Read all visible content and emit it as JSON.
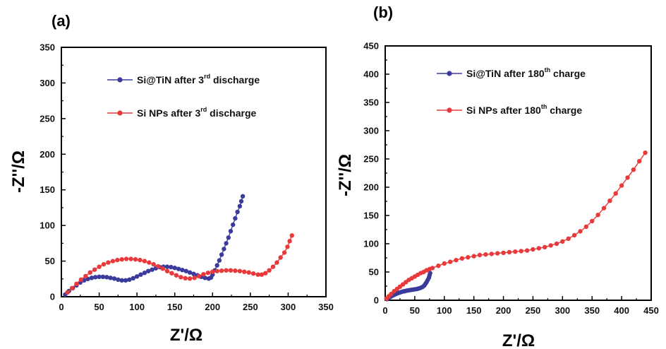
{
  "chart_data": [
    {
      "type": "scatter",
      "panel_label": "(a)",
      "xlabel": "Z'/Ω",
      "ylabel": "-Z''/Ω",
      "xlim": [
        0,
        350
      ],
      "ylim": [
        0,
        350
      ],
      "xticks": [
        "0",
        "50",
        "100",
        "150",
        "200",
        "250",
        "300",
        "350"
      ],
      "yticks": [
        "0",
        "50",
        "100",
        "150",
        "200",
        "250",
        "300",
        "350"
      ],
      "legend_position": "upper-center",
      "series": [
        {
          "name": "Si@TiN after 3rd discharge",
          "legend_main": "Si@TiN after 3",
          "legend_sup": "rd",
          "legend_tail": " discharge",
          "color": "#3b3b9c",
          "points": [
            [
              5,
              3
            ],
            [
              10,
              8
            ],
            [
              15,
              12
            ],
            [
              20,
              16
            ],
            [
              25,
              20
            ],
            [
              30,
              23
            ],
            [
              35,
              25
            ],
            [
              40,
              26.5
            ],
            [
              45,
              27.5
            ],
            [
              50,
              28
            ],
            [
              55,
              28
            ],
            [
              60,
              27.5
            ],
            [
              65,
              26.5
            ],
            [
              70,
              25.5
            ],
            [
              75,
              24
            ],
            [
              80,
              23
            ],
            [
              85,
              23
            ],
            [
              90,
              24
            ],
            [
              95,
              26
            ],
            [
              100,
              28.5
            ],
            [
              105,
              31
            ],
            [
              110,
              33.5
            ],
            [
              115,
              36
            ],
            [
              120,
              38
            ],
            [
              125,
              40
            ],
            [
              130,
              41.5
            ],
            [
              135,
              42
            ],
            [
              140,
              42
            ],
            [
              145,
              41.5
            ],
            [
              150,
              40.5
            ],
            [
              155,
              39
            ],
            [
              160,
              37.5
            ],
            [
              165,
              36
            ],
            [
              170,
              34
            ],
            [
              175,
              32
            ],
            [
              180,
              30
            ],
            [
              185,
              28
            ],
            [
              190,
              26.5
            ],
            [
              195,
              25.5
            ],
            [
              198,
              27
            ],
            [
              200,
              31
            ],
            [
              203,
              37
            ],
            [
              206,
              44
            ],
            [
              209,
              51
            ],
            [
              212,
              59
            ],
            [
              215,
              67
            ],
            [
              218,
              75
            ],
            [
              221,
              83
            ],
            [
              224,
              92
            ],
            [
              227,
              101
            ],
            [
              230,
              110
            ],
            [
              233,
              119
            ],
            [
              236,
              127
            ],
            [
              238,
              134
            ],
            [
              240,
              141
            ]
          ]
        },
        {
          "name": "Si NPs after 3rd discharge",
          "legend_main": "Si NPs after 3",
          "legend_sup": "rd",
          "legend_tail": " discharge",
          "color": "#e8393b",
          "points": [
            [
              8,
              6
            ],
            [
              14,
              12
            ],
            [
              20,
              18
            ],
            [
              26,
              24
            ],
            [
              32,
              29
            ],
            [
              38,
              34
            ],
            [
              44,
              38
            ],
            [
              50,
              42
            ],
            [
              56,
              45.5
            ],
            [
              62,
              48
            ],
            [
              68,
              50
            ],
            [
              74,
              51.5
            ],
            [
              80,
              52.5
            ],
            [
              86,
              53
            ],
            [
              92,
              53
            ],
            [
              98,
              52.5
            ],
            [
              104,
              51.5
            ],
            [
              110,
              50
            ],
            [
              116,
              48
            ],
            [
              122,
              45.5
            ],
            [
              128,
              42.5
            ],
            [
              134,
              39.5
            ],
            [
              140,
              36
            ],
            [
              146,
              33
            ],
            [
              152,
              30
            ],
            [
              158,
              27.5
            ],
            [
              164,
              26
            ],
            [
              170,
              25.5
            ],
            [
              176,
              26.5
            ],
            [
              182,
              29
            ],
            [
              188,
              31.5
            ],
            [
              194,
              33.5
            ],
            [
              200,
              35
            ],
            [
              206,
              36
            ],
            [
              212,
              36.5
            ],
            [
              218,
              37
            ],
            [
              224,
              37
            ],
            [
              230,
              36.5
            ],
            [
              236,
              36
            ],
            [
              242,
              35
            ],
            [
              248,
              34
            ],
            [
              254,
              32.5
            ],
            [
              260,
              31
            ],
            [
              265,
              31
            ],
            [
              270,
              33
            ],
            [
              275,
              37
            ],
            [
              280,
              42
            ],
            [
              285,
              48
            ],
            [
              290,
              55
            ],
            [
              295,
              62
            ],
            [
              299,
              70
            ],
            [
              302,
              78
            ],
            [
              305,
              86
            ]
          ]
        }
      ]
    },
    {
      "type": "scatter",
      "panel_label": "(b)",
      "xlabel": "Z'/Ω",
      "ylabel": "-Z''/Ω",
      "xlim": [
        0,
        450
      ],
      "ylim": [
        0,
        450
      ],
      "xticks": [
        "0",
        "50",
        "100",
        "150",
        "200",
        "250",
        "300",
        "350",
        "400",
        "450"
      ],
      "yticks": [
        "0",
        "50",
        "100",
        "150",
        "200",
        "250",
        "300",
        "350",
        "400",
        "450"
      ],
      "legend_position": "upper-center",
      "series": [
        {
          "name": "Si@TiN after 180th charge",
          "legend_main": "Si@TiN after 180",
          "legend_sup": "th",
          "legend_tail": " charge",
          "color": "#3b3b9c",
          "points": [
            [
              3,
              2
            ],
            [
              6,
              4
            ],
            [
              9,
              6
            ],
            [
              12,
              8
            ],
            [
              15,
              9.5
            ],
            [
              18,
              11
            ],
            [
              21,
              12.5
            ],
            [
              24,
              13.5
            ],
            [
              27,
              14.5
            ],
            [
              30,
              15.5
            ],
            [
              33,
              16
            ],
            [
              36,
              17
            ],
            [
              39,
              17.5
            ],
            [
              42,
              18
            ],
            [
              45,
              18.5
            ],
            [
              48,
              19
            ],
            [
              51,
              19.5
            ],
            [
              54,
              20
            ],
            [
              57,
              21
            ],
            [
              60,
              22
            ],
            [
              63,
              23.5
            ],
            [
              66,
              26
            ],
            [
              68,
              29
            ],
            [
              70,
              32
            ],
            [
              72,
              36
            ],
            [
              74,
              40
            ],
            [
              75,
              44
            ],
            [
              76,
              48
            ]
          ]
        },
        {
          "name": "Si NPs after 180th charge",
          "legend_main": "Si NPs after 180",
          "legend_sup": "th",
          "legend_tail": " charge",
          "color": "#e8393b",
          "points": [
            [
              2,
              3
            ],
            [
              6,
              7
            ],
            [
              10,
              11
            ],
            [
              15,
              16
            ],
            [
              20,
              20
            ],
            [
              25,
              24
            ],
            [
              30,
              28
            ],
            [
              35,
              32
            ],
            [
              40,
              36
            ],
            [
              45,
              39
            ],
            [
              50,
              42
            ],
            [
              55,
              45
            ],
            [
              60,
              48
            ],
            [
              65,
              50
            ],
            [
              70,
              53
            ],
            [
              75,
              55
            ],
            [
              80,
              57
            ],
            [
              90,
              61
            ],
            [
              100,
              65
            ],
            [
              110,
              68
            ],
            [
              120,
              71
            ],
            [
              130,
              74
            ],
            [
              140,
              76
            ],
            [
              150,
              78
            ],
            [
              160,
              80
            ],
            [
              170,
              81
            ],
            [
              180,
              82
            ],
            [
              190,
              83
            ],
            [
              200,
              84
            ],
            [
              210,
              85
            ],
            [
              220,
              86
            ],
            [
              230,
              87
            ],
            [
              240,
              88
            ],
            [
              250,
              90
            ],
            [
              260,
              92
            ],
            [
              270,
              94
            ],
            [
              280,
              97
            ],
            [
              290,
              100
            ],
            [
              300,
              104
            ],
            [
              310,
              109
            ],
            [
              320,
              115
            ],
            [
              330,
              122
            ],
            [
              340,
              130
            ],
            [
              350,
              140
            ],
            [
              360,
              151
            ],
            [
              370,
              163
            ],
            [
              380,
              176
            ],
            [
              390,
              189
            ],
            [
              400,
              203
            ],
            [
              410,
              217
            ],
            [
              420,
              231
            ],
            [
              430,
              246
            ],
            [
              440,
              261
            ]
          ]
        }
      ]
    }
  ]
}
